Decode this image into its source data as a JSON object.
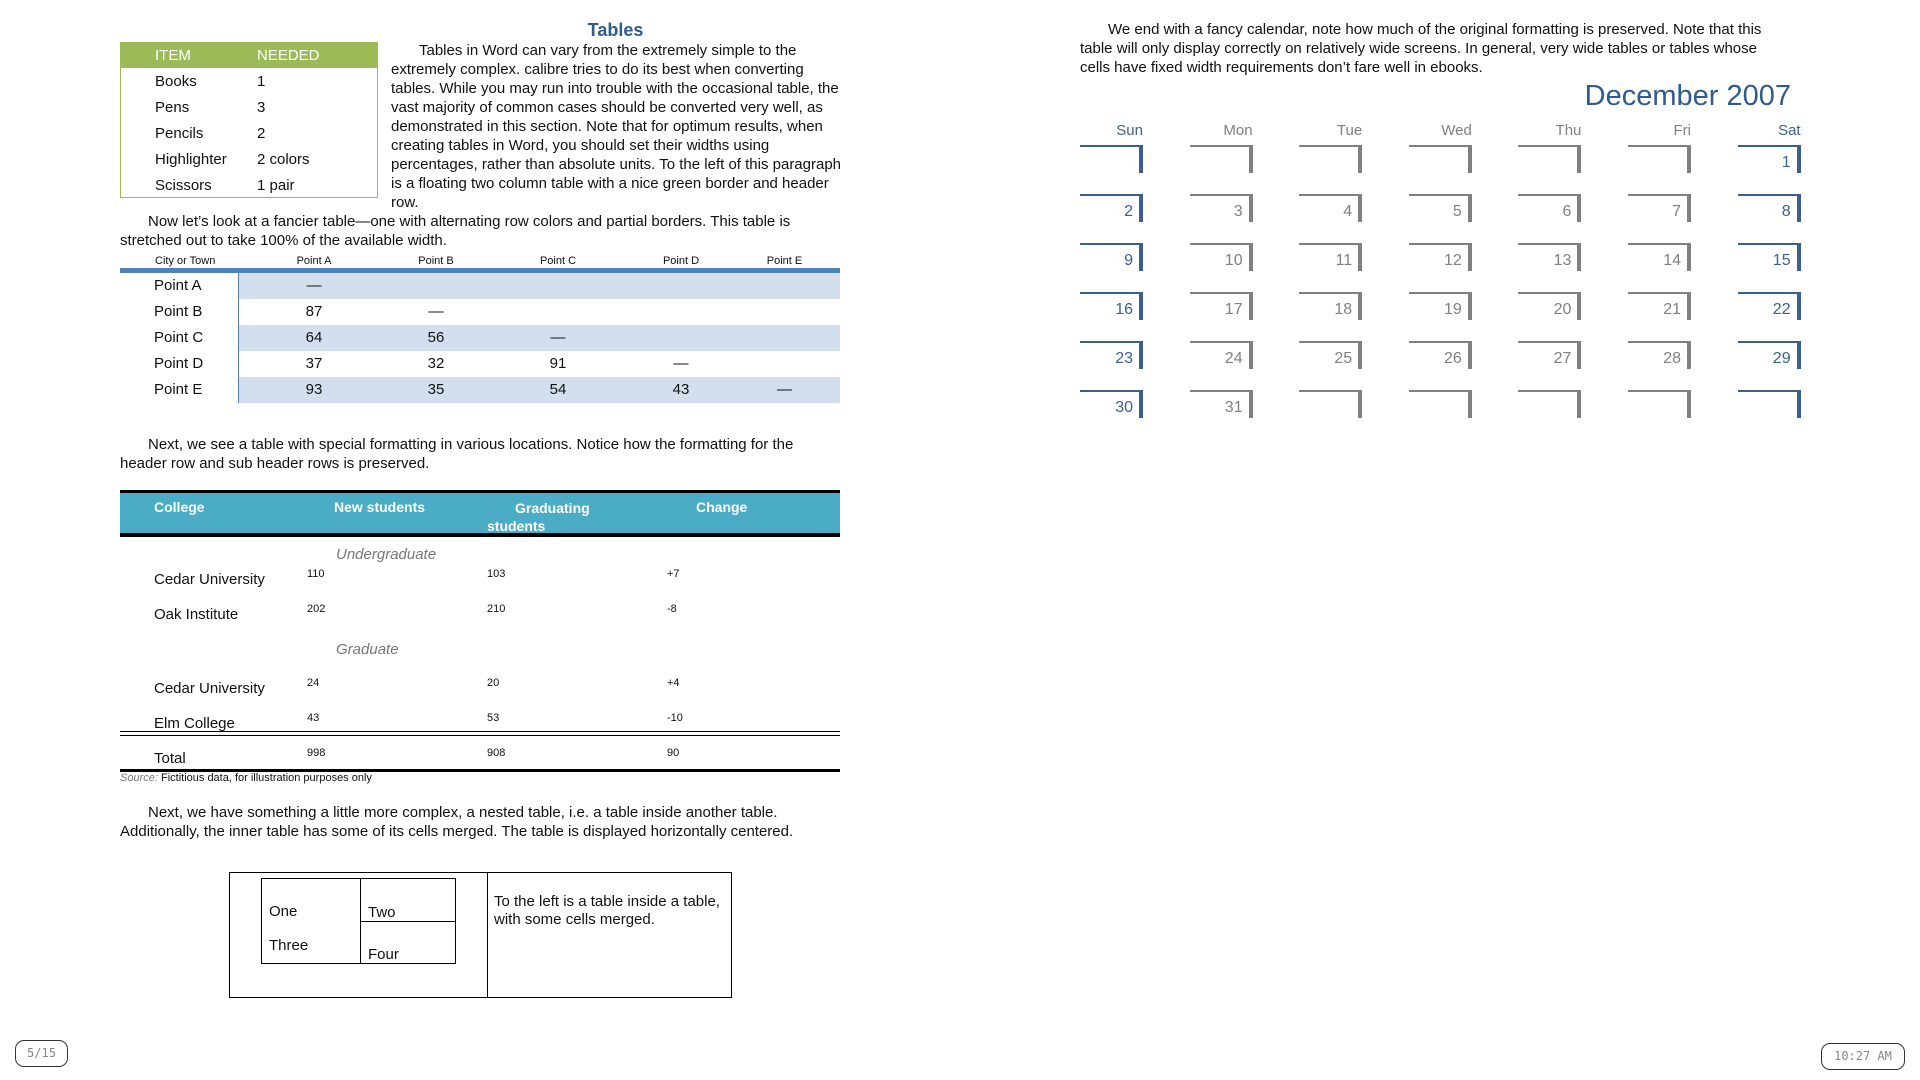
{
  "title": "Tables",
  "intro": "Tables in Word can vary from the extremely simple to the extremely complex. calibre tries to do its best when converting tables. While you may run into trouble with the occasional table, the vast majority of common cases should be converted very well, as demonstrated in this section. Note that for optimum results, when creating tables in Word, you should set their widths using percentages, rather than absolute units. To the left of this paragraph is a floating two column table with a nice green border and header row.",
  "green_table": {
    "headers": [
      "ITEM",
      "NEEDED"
    ],
    "rows": [
      [
        "Books",
        "1"
      ],
      [
        "Pens",
        "3"
      ],
      [
        "Pencils",
        "2"
      ],
      [
        "Highlighter",
        "2 colors"
      ],
      [
        "Scissors",
        "1 pair"
      ]
    ],
    "color": "#9bbb59"
  },
  "fancy_para": "Now let’s look at a fancier table—one with alternating row colors and partial borders. This table is stretched out to take 100% of the available width.",
  "point_table": {
    "headers": [
      "City or Town",
      "Point A",
      "Point B",
      "Point C",
      "Point D",
      "Point E"
    ],
    "rows": [
      [
        "Point A",
        "—",
        "",
        "",
        "",
        ""
      ],
      [
        "Point B",
        "87",
        "—",
        "",
        "",
        ""
      ],
      [
        "Point C",
        "64",
        "56",
        "—",
        "",
        ""
      ],
      [
        "Point D",
        "37",
        "32",
        "91",
        "—",
        ""
      ],
      [
        "Point E",
        "93",
        "35",
        "54",
        "43",
        "—"
      ]
    ]
  },
  "special_para": "Next, we see a table with special formatting in various locations. Notice how the formatting for the header row and sub header rows is preserved.",
  "college_table": {
    "headers": [
      "College",
      "New students",
      "Graduating students",
      "Change"
    ],
    "sub1": "Undergraduate",
    "sub2": "Graduate",
    "rows": [
      [
        "Cedar University",
        "110",
        "103",
        "+7"
      ],
      [
        "Oak Institute",
        "202",
        "210",
        "-8"
      ],
      [
        "Cedar University",
        "24",
        "20",
        "+4"
      ],
      [
        "Elm College",
        "43",
        "53",
        "-10"
      ]
    ],
    "total": [
      "Total",
      "998",
      "908",
      "90"
    ],
    "source_label": "Source:",
    "source_text": "Fictitious data, for illustration purposes only",
    "header_color": "#4bacc6"
  },
  "nested_para": "Next, we have something a little more complex, a nested table, i.e. a table inside another table. Additionally, the inner table has some of its cells merged. The table is displayed horizontally centered.",
  "nested": {
    "one": "One",
    "two": "Two",
    "three": "Three",
    "four": "Four",
    "right": "To the left is a table inside a table, with some cells merged."
  },
  "calendar_para": "We end with a fancy calendar, note how much of the original formatting is preserved. Note that this table will only display correctly on relatively wide screens. In general, very wide tables or tables whose cells have fixed width requirements don’t fare well in ebooks.",
  "calendar": {
    "title": "December 2007",
    "days": [
      "Sun",
      "Mon",
      "Tue",
      "Wed",
      "Thu",
      "Fri",
      "Sat"
    ],
    "weeks": [
      [
        "",
        "",
        "",
        "",
        "",
        "",
        "1"
      ],
      [
        "2",
        "3",
        "4",
        "5",
        "6",
        "7",
        "8"
      ],
      [
        "9",
        "10",
        "11",
        "12",
        "13",
        "14",
        "15"
      ],
      [
        "16",
        "17",
        "18",
        "19",
        "20",
        "21",
        "22"
      ],
      [
        "23",
        "24",
        "25",
        "26",
        "27",
        "28",
        "29"
      ],
      [
        "30",
        "31",
        "",
        "",
        "",
        "",
        ""
      ]
    ],
    "weekend_color": "#3a5f93",
    "weekday_color": "#808080"
  },
  "footer": {
    "page": "5/15",
    "time": "10:27 AM"
  }
}
